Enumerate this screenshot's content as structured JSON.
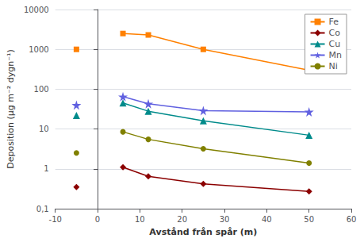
{
  "chart_data": {
    "type": "line",
    "xlabel": "Avstånd från spår (m)",
    "ylabel": "Deposition (µg m⁻² dygn⁻¹)",
    "log": "y",
    "x": [
      -5,
      null,
      6,
      12,
      25,
      50
    ],
    "series": [
      {
        "name": "Fe",
        "color": "#FF8000",
        "marker": "square",
        "values": [
          1000,
          null,
          2500,
          2300,
          1000,
          300
        ]
      },
      {
        "name": "Co",
        "color": "#8B0000",
        "marker": "diamond",
        "values": [
          0.35,
          null,
          1.1,
          0.65,
          0.42,
          0.27
        ]
      },
      {
        "name": "Cu",
        "color": "#008B8B",
        "marker": "triangle",
        "values": [
          22,
          null,
          45,
          28,
          16,
          7
        ]
      },
      {
        "name": "Mn",
        "color": "#6060E0",
        "marker": "star",
        "values": [
          40,
          null,
          65,
          43,
          29,
          27
        ]
      },
      {
        "name": "Ni",
        "color": "#808000",
        "marker": "circle",
        "values": [
          2.5,
          null,
          8.5,
          5.5,
          3.2,
          1.4
        ]
      }
    ],
    "xlim": [
      -10,
      60
    ],
    "xticks": [
      -10,
      0,
      10,
      20,
      30,
      40,
      50,
      60
    ],
    "ylim": [
      0.1,
      10000
    ],
    "yticks": [
      {
        "value": 0.1,
        "label": "0,1"
      },
      1,
      10,
      100,
      1000,
      10000
    ],
    "grid": true,
    "legend": "upper right"
  }
}
